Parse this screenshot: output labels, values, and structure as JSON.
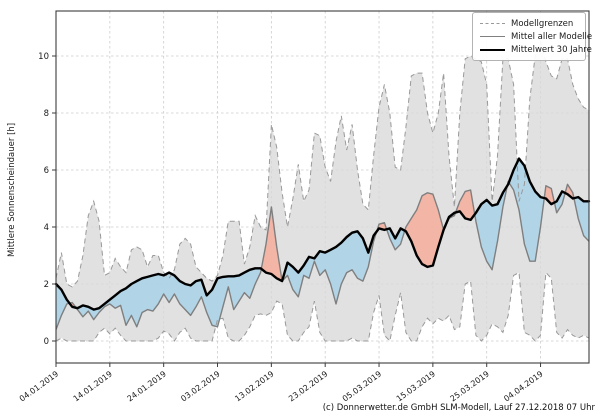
{
  "figure": {
    "ylabel": "Mittlere Sonnenscheindauer [h]",
    "footer": "(c) Donnerwetter.de GmbH SLM-Modell, Lauf 27.12.2018 07 Uhr"
  },
  "chart_data": {
    "type": "line",
    "title": "",
    "xlabel": "",
    "ylabel": "Mittlere Sonnenscheindauer [h]",
    "ylim": [
      -0.77,
      11.6
    ],
    "y_ticks": [
      0,
      2,
      4,
      6,
      8,
      10
    ],
    "grid": true,
    "legend_position": "upper right",
    "x_tick_labels": [
      "04.01.2019",
      "14.01.2019",
      "24.01.2019",
      "03.02.2019",
      "13.02.2019",
      "23.02.2019",
      "05.03.2019",
      "15.03.2019",
      "25.03.2019",
      "04.04.2019"
    ],
    "x_tick_day_index": [
      0,
      10,
      20,
      30,
      40,
      50,
      60,
      70,
      80,
      90
    ],
    "n_days": 100,
    "legend": [
      {
        "label": "Modellgrenzen",
        "style": "dashed-gray-line"
      },
      {
        "label": "Mittel aller Modelle",
        "style": "solid-gray-line"
      },
      {
        "label": "Mittelwert 30 Jahre",
        "style": "thick-black-line"
      }
    ],
    "colors": {
      "envelope_fill": "#d9d9d9",
      "envelope_edge": "#999999",
      "model_mean_line": "#7f7f7f",
      "mean_30y_line": "#000000",
      "above_normal_fill": "#f2b2a2",
      "below_normal_fill": "#aed3e6",
      "grid_line": "#cccccc",
      "spine": "#3c3c3c"
    },
    "series": [
      {
        "name": "Modellgrenzen (oben)",
        "role": "envelope_max",
        "values": [
          2.2,
          3.1,
          2.0,
          1.9,
          2.1,
          3.0,
          4.4,
          4.9,
          4.2,
          2.3,
          2.4,
          2.9,
          2.6,
          2.4,
          3.2,
          3.3,
          3.2,
          2.6,
          3.0,
          3.0,
          2.4,
          2.2,
          2.5,
          3.4,
          3.6,
          3.4,
          2.6,
          2.4,
          2.2,
          2.1,
          2.3,
          3.0,
          4.2,
          4.2,
          4.2,
          2.7,
          3.3,
          4.4,
          4.0,
          3.9,
          7.6,
          6.8,
          5.2,
          4.0,
          5.0,
          6.2,
          4.9,
          5.3,
          7.3,
          7.2,
          6.1,
          5.6,
          7.0,
          7.9,
          6.7,
          7.6,
          6.0,
          4.8,
          4.6,
          6.5,
          8.2,
          9.0,
          8.0,
          6.1,
          6.0,
          7.5,
          9.3,
          9.4,
          9.4,
          8.0,
          7.3,
          8.0,
          9.4,
          6.5,
          4.7,
          8.0,
          9.9,
          10.0,
          9.9,
          9.8,
          9.0,
          4.9,
          6.5,
          9.9,
          9.9,
          9.0,
          4.9,
          5.5,
          8.5,
          10.0,
          10.5,
          9.8,
          9.3,
          9.2,
          9.9,
          9.9,
          9.0,
          8.5,
          8.2,
          8.1
        ]
      },
      {
        "name": "Modellgrenzen (unten)",
        "role": "envelope_min",
        "values": [
          0,
          0.1,
          0,
          0,
          0,
          0,
          0,
          0,
          0.3,
          0.45,
          0.25,
          0.45,
          0.2,
          0,
          0,
          0,
          0,
          0,
          0,
          0.1,
          0.35,
          0.25,
          0,
          0.3,
          0.45,
          0.1,
          0,
          0,
          0,
          0,
          0.75,
          0.8,
          0.1,
          0,
          0,
          0.2,
          0.5,
          0.9,
          0.95,
          0.9,
          1.0,
          1.4,
          1.3,
          0.2,
          0,
          0,
          0.3,
          0.5,
          1.4,
          0.3,
          0,
          0,
          0,
          0,
          0,
          0.1,
          0,
          0,
          0,
          1.0,
          1.6,
          0.2,
          0,
          0.9,
          1.7,
          0.3,
          0,
          0,
          0.5,
          0.8,
          0.6,
          0.8,
          0.7,
          0.9,
          0.4,
          0.5,
          2.0,
          2.1,
          0.2,
          0,
          0.2,
          0.6,
          0.5,
          0.3,
          0.9,
          2.3,
          2.4,
          0.3,
          0.2,
          0,
          0.2,
          2.4,
          2.2,
          0.3,
          0.1,
          0.4,
          0.2,
          0.1,
          0.2,
          0.1
        ]
      },
      {
        "name": "Mittel aller Modelle",
        "role": "model_mean",
        "values": [
          0.4,
          0.9,
          1.3,
          1.35,
          1.1,
          0.85,
          1.05,
          0.75,
          1.0,
          1.2,
          1.3,
          1.15,
          1.25,
          0.55,
          0.9,
          0.5,
          1.0,
          1.1,
          1.05,
          1.3,
          1.65,
          1.35,
          1.65,
          1.3,
          1.1,
          0.9,
          1.2,
          1.55,
          1.0,
          0.55,
          0.5,
          1.2,
          1.9,
          1.1,
          1.4,
          1.7,
          1.5,
          2.0,
          2.4,
          3.4,
          4.7,
          3.3,
          2.1,
          2.3,
          1.8,
          1.55,
          2.3,
          2.2,
          2.8,
          2.3,
          2.5,
          2.0,
          1.3,
          2.0,
          2.4,
          2.5,
          2.2,
          2.1,
          2.6,
          3.5,
          4.1,
          4.15,
          3.6,
          3.2,
          3.4,
          4.0,
          4.3,
          4.6,
          5.1,
          5.2,
          5.15,
          4.6,
          3.9,
          4.3,
          4.4,
          4.9,
          5.25,
          5.3,
          4.2,
          3.3,
          2.8,
          2.5,
          3.5,
          4.7,
          5.6,
          5.3,
          4.6,
          3.4,
          2.8,
          2.8,
          4.0,
          5.45,
          5.35,
          4.5,
          4.8,
          5.5,
          5.2,
          4.3,
          3.7,
          3.5
        ]
      },
      {
        "name": "Mittelwert 30 Jahre",
        "role": "mean_30y",
        "values": [
          2.0,
          1.8,
          1.45,
          1.2,
          1.15,
          1.25,
          1.2,
          1.1,
          1.15,
          1.3,
          1.45,
          1.6,
          1.75,
          1.85,
          2.0,
          2.1,
          2.2,
          2.25,
          2.3,
          2.35,
          2.3,
          2.4,
          2.3,
          2.1,
          2.0,
          1.95,
          2.1,
          2.15,
          1.6,
          1.8,
          2.2,
          2.25,
          2.27,
          2.27,
          2.3,
          2.4,
          2.5,
          2.55,
          2.55,
          2.4,
          2.35,
          2.2,
          2.1,
          2.75,
          2.6,
          2.4,
          2.65,
          2.95,
          2.9,
          3.15,
          3.1,
          3.2,
          3.3,
          3.45,
          3.65,
          3.8,
          3.85,
          3.6,
          3.1,
          3.7,
          3.95,
          3.9,
          3.95,
          3.6,
          3.95,
          3.85,
          3.5,
          3.0,
          2.7,
          2.6,
          2.65,
          3.3,
          3.9,
          4.35,
          4.5,
          4.55,
          4.3,
          4.25,
          4.5,
          4.8,
          4.95,
          4.75,
          4.8,
          5.2,
          5.5,
          6.0,
          6.4,
          6.15,
          5.6,
          5.25,
          5.05,
          5.0,
          4.8,
          4.9,
          5.25,
          5.15,
          5.0,
          5.05,
          4.9,
          4.9
        ]
      }
    ]
  }
}
